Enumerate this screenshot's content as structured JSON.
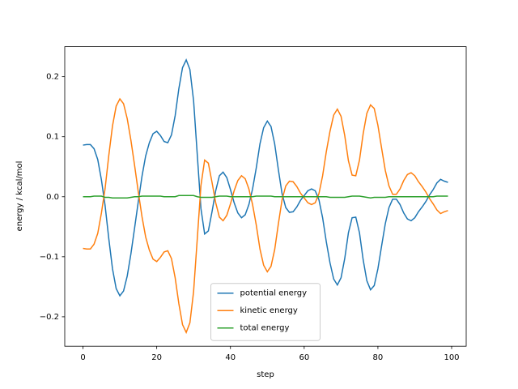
{
  "chart_data": {
    "type": "line",
    "xlabel": "step",
    "ylabel": "energy / kcal/mol",
    "x": [
      0,
      1,
      2,
      3,
      4,
      5,
      6,
      7,
      8,
      9,
      10,
      11,
      12,
      13,
      14,
      15,
      16,
      17,
      18,
      19,
      20,
      21,
      22,
      23,
      24,
      25,
      26,
      27,
      28,
      29,
      30,
      31,
      32,
      33,
      34,
      35,
      36,
      37,
      38,
      39,
      40,
      41,
      42,
      43,
      44,
      45,
      46,
      47,
      48,
      49,
      50,
      51,
      52,
      53,
      54,
      55,
      56,
      57,
      58,
      59,
      60,
      61,
      62,
      63,
      64,
      65,
      66,
      67,
      68,
      69,
      70,
      71,
      72,
      73,
      74,
      75,
      76,
      77,
      78,
      79,
      80,
      81,
      82,
      83,
      84,
      85,
      86,
      87,
      88,
      89,
      90,
      91,
      92,
      93,
      94,
      95,
      96,
      97,
      98,
      99
    ],
    "series": [
      {
        "name": "potential energy",
        "color": "#1f77b4",
        "values": [
          0.086,
          0.087,
          0.087,
          0.08,
          0.062,
          0.028,
          -0.015,
          -0.07,
          -0.12,
          -0.153,
          -0.165,
          -0.157,
          -0.132,
          -0.095,
          -0.052,
          -0.008,
          0.034,
          0.068,
          0.09,
          0.105,
          0.109,
          0.102,
          0.092,
          0.09,
          0.103,
          0.135,
          0.18,
          0.215,
          0.228,
          0.212,
          0.16,
          0.07,
          -0.02,
          -0.062,
          -0.057,
          -0.025,
          0.01,
          0.035,
          0.041,
          0.032,
          0.012,
          -0.01,
          -0.027,
          -0.035,
          -0.03,
          -0.013,
          0.013,
          0.048,
          0.088,
          0.115,
          0.126,
          0.117,
          0.088,
          0.045,
          0.005,
          -0.018,
          -0.026,
          -0.025,
          -0.017,
          -0.006,
          0.002,
          0.01,
          0.013,
          0.01,
          -0.005,
          -0.035,
          -0.075,
          -0.11,
          -0.137,
          -0.147,
          -0.135,
          -0.103,
          -0.06,
          -0.035,
          -0.034,
          -0.06,
          -0.105,
          -0.14,
          -0.155,
          -0.148,
          -0.12,
          -0.082,
          -0.045,
          -0.018,
          -0.004,
          -0.004,
          -0.013,
          -0.027,
          -0.037,
          -0.04,
          -0.035,
          -0.025,
          -0.017,
          -0.008,
          0.003,
          0.012,
          0.023,
          0.029,
          0.026,
          0.024
        ]
      },
      {
        "name": "kinetic energy",
        "color": "#ff7f0e",
        "values": [
          -0.086,
          -0.087,
          -0.087,
          -0.079,
          -0.061,
          -0.027,
          0.014,
          0.069,
          0.118,
          0.151,
          0.163,
          0.155,
          0.13,
          0.094,
          0.052,
          0.008,
          -0.033,
          -0.067,
          -0.089,
          -0.104,
          -0.108,
          -0.101,
          -0.092,
          -0.09,
          -0.103,
          -0.135,
          -0.178,
          -0.213,
          -0.226,
          -0.21,
          -0.158,
          -0.07,
          0.019,
          0.061,
          0.056,
          0.024,
          -0.01,
          -0.034,
          -0.04,
          -0.031,
          -0.012,
          0.01,
          0.027,
          0.035,
          0.03,
          0.013,
          -0.013,
          -0.047,
          -0.087,
          -0.114,
          -0.125,
          -0.116,
          -0.088,
          -0.045,
          -0.005,
          0.018,
          0.026,
          0.025,
          0.017,
          0.006,
          -0.002,
          -0.01,
          -0.013,
          -0.01,
          0.005,
          0.035,
          0.075,
          0.109,
          0.136,
          0.146,
          0.134,
          0.102,
          0.06,
          0.036,
          0.035,
          0.061,
          0.105,
          0.139,
          0.153,
          0.147,
          0.119,
          0.081,
          0.044,
          0.018,
          0.004,
          0.004,
          0.013,
          0.027,
          0.037,
          0.04,
          0.035,
          0.025,
          0.017,
          0.008,
          -0.003,
          -0.012,
          -0.022,
          -0.028,
          -0.025,
          -0.023
        ]
      },
      {
        "name": "total energy",
        "color": "#2ca02c",
        "values": [
          0.0,
          0.0,
          0.0,
          0.001,
          0.001,
          0.001,
          -0.001,
          -0.001,
          -0.002,
          -0.002,
          -0.002,
          -0.002,
          -0.002,
          -0.001,
          0.0,
          0.0,
          0.001,
          0.001,
          0.001,
          0.001,
          0.001,
          0.001,
          0.0,
          0.0,
          0.0,
          0.0,
          0.002,
          0.002,
          0.002,
          0.002,
          0.002,
          0.0,
          -0.001,
          -0.001,
          -0.001,
          -0.001,
          0.0,
          0.001,
          0.001,
          0.001,
          0.0,
          0.0,
          0.0,
          0.0,
          0.0,
          0.0,
          0.0,
          0.001,
          0.001,
          0.001,
          0.001,
          0.001,
          0.0,
          0.0,
          0.0,
          0.0,
          0.0,
          0.0,
          0.0,
          0.0,
          0.0,
          0.0,
          0.0,
          0.0,
          0.0,
          0.0,
          0.0,
          -0.001,
          -0.001,
          -0.001,
          -0.001,
          -0.001,
          0.0,
          0.001,
          0.001,
          0.001,
          0.0,
          -0.001,
          -0.002,
          -0.001,
          -0.001,
          -0.001,
          -0.001,
          0.0,
          0.0,
          0.0,
          0.0,
          0.0,
          0.0,
          0.0,
          0.0,
          0.0,
          0.0,
          0.0,
          0.0,
          0.0,
          0.001,
          0.001,
          0.001,
          0.001
        ]
      }
    ],
    "xlim": [
      -4.95,
      103.95
    ],
    "xticks": [
      0,
      20,
      40,
      60,
      80,
      100
    ],
    "ylim": [
      -0.249,
      0.25
    ],
    "yticks": [
      {
        "value": -0.2,
        "label": "−0.2"
      },
      {
        "value": -0.1,
        "label": "−0.1"
      },
      {
        "value": 0,
        "label": "0.0"
      },
      {
        "value": 0.1,
        "label": "0.1"
      },
      {
        "value": 0.2,
        "label": "0.2"
      }
    ],
    "grid": false,
    "legend": "lower center"
  }
}
